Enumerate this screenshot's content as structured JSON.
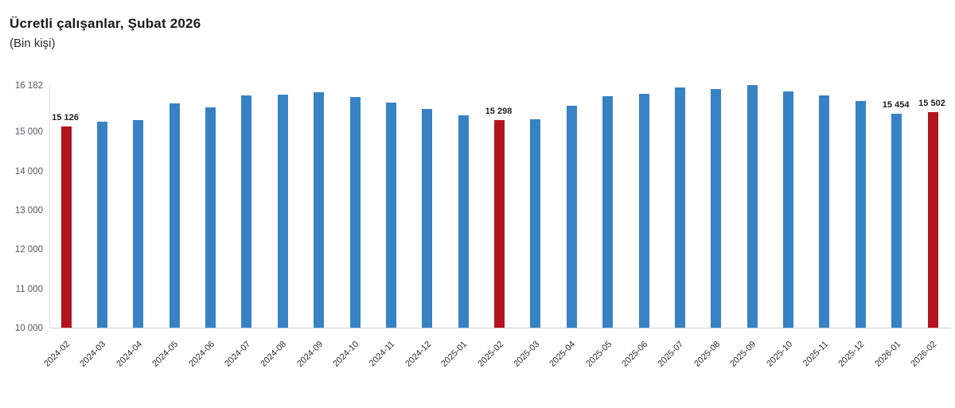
{
  "title": "Ücretli çalışanlar, Şubat 2026",
  "subtitle": "(Bin kişi)",
  "colors": {
    "bar_blue": "#3782c4",
    "bar_red": "#b3151e",
    "axis_line": "#cfcfcf",
    "tick_text": "#55575b",
    "data_label_text": "#1f1f1f"
  },
  "chart_data": {
    "type": "bar",
    "title": "Ücretli çalışanlar, Şubat 2026",
    "subtitle": "(Bin kişi)",
    "xlabel": "",
    "ylabel": "Bin kişi",
    "ylim": [
      10000,
      16182
    ],
    "grid": false,
    "legend": false,
    "yticks": [
      {
        "value": 16182,
        "label": "16 182"
      },
      {
        "value": 15000,
        "label": "15 000"
      },
      {
        "value": 14000,
        "label": "14 000"
      },
      {
        "value": 13000,
        "label": "13 000"
      },
      {
        "value": 12000,
        "label": "12 000"
      },
      {
        "value": 11000,
        "label": "11 000"
      },
      {
        "value": 10000,
        "label": "10 000"
      }
    ],
    "categories": [
      "2024-02",
      "2024-03",
      "2024-04",
      "2024-05",
      "2024-06",
      "2024-07",
      "2024-08",
      "2024-09",
      "2024-10",
      "2024-11",
      "2024-12",
      "2025-01",
      "2025-02",
      "2025-03",
      "2025-04",
      "2025-05",
      "2025-06",
      "2025-07",
      "2025-08",
      "2025-09",
      "2025-10",
      "2025-11",
      "2025-12",
      "2026-01",
      "2026-02"
    ],
    "values": [
      15126,
      15240,
      15290,
      15720,
      15610,
      15925,
      15935,
      15990,
      15875,
      15740,
      15580,
      15410,
      15298,
      15320,
      15650,
      15890,
      15950,
      16125,
      16090,
      16182,
      16020,
      15910,
      15770,
      15454,
      15502
    ],
    "highlighted_categories": [
      "2024-02",
      "2025-02",
      "2026-02"
    ],
    "data_labels": [
      {
        "category": "2024-02",
        "text": "15 126"
      },
      {
        "category": "2025-02",
        "text": "15 298"
      },
      {
        "category": "2026-01",
        "text": "15 454"
      },
      {
        "category": "2026-02",
        "text": "15 502"
      }
    ]
  }
}
